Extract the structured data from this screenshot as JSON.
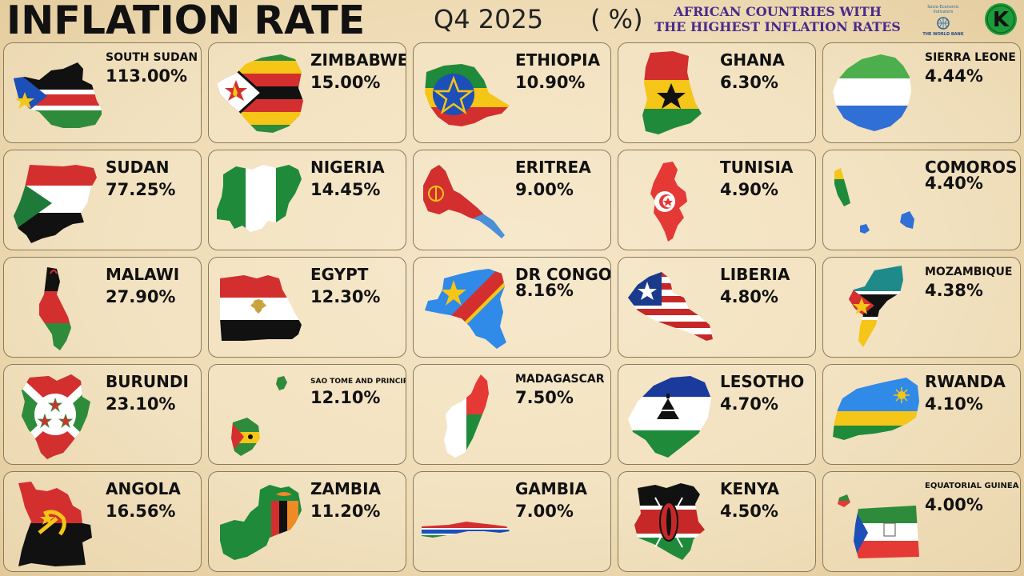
{
  "header": {
    "title": "INFLATION RATE",
    "period": "Q4  2025",
    "unit": "( %)",
    "subtitle_line1": "AFRICAN COUNTRIES WITH",
    "subtitle_line2": "THE HIGHEST INFLATION RATES",
    "source_line1": "Socio-Economic",
    "source_line2": "Indicators",
    "source_name": "THE WORLD BANK",
    "brand_letter": "K"
  },
  "countries": [
    {
      "name": "SOUTH SUDAN",
      "value": "113.00%",
      "icon": "south-sudan-flag-map"
    },
    {
      "name": "SUDAN",
      "value": "77.25%",
      "icon": "sudan-flag-map"
    },
    {
      "name": "MALAWI",
      "value": "27.90%",
      "icon": "malawi-flag-map"
    },
    {
      "name": "BURUNDI",
      "value": "23.10%",
      "icon": "burundi-flag-map"
    },
    {
      "name": "ANGOLA",
      "value": "16.56%",
      "icon": "angola-flag-map"
    },
    {
      "name": "ZIMBABWE",
      "value": "15.00%",
      "icon": "zimbabwe-flag-map"
    },
    {
      "name": "NIGERIA",
      "value": "14.45%",
      "icon": "nigeria-flag-map"
    },
    {
      "name": "EGYPT",
      "value": "12.30%",
      "icon": "egypt-flag-map"
    },
    {
      "name": "SAO TOME AND PRINCIPE",
      "value": "12.10%",
      "icon": "sao-tome-flag-map"
    },
    {
      "name": "ZAMBIA",
      "value": "11.20%",
      "icon": "zambia-flag-map"
    },
    {
      "name": "ETHIOPIA",
      "value": "10.90%",
      "icon": "ethiopia-flag-map"
    },
    {
      "name": "ERITREA",
      "value": "9.00%",
      "icon": "eritrea-flag-map"
    },
    {
      "name": "DR CONGO",
      "value": "8.16%",
      "icon": "dr-congo-flag-map"
    },
    {
      "name": "MADAGASCAR",
      "value": "7.50%",
      "icon": "madagascar-flag-map"
    },
    {
      "name": "GAMBIA",
      "value": "7.00%",
      "icon": "gambia-flag-map"
    },
    {
      "name": "GHANA",
      "value": "6.30%",
      "icon": "ghana-flag-map"
    },
    {
      "name": "TUNISIA",
      "value": "4.90%",
      "icon": "tunisia-flag-map"
    },
    {
      "name": "LIBERIA",
      "value": "4.80%",
      "icon": "liberia-flag-map"
    },
    {
      "name": "LESOTHO",
      "value": "4.70%",
      "icon": "lesotho-flag-map"
    },
    {
      "name": "KENYA",
      "value": "4.50%",
      "icon": "kenya-flag-map"
    },
    {
      "name": "SIERRA LEONE",
      "value": "4.44%",
      "icon": "sierra-leone-flag-map"
    },
    {
      "name": "COMOROS",
      "value": "4.40%",
      "icon": "comoros-flag-map"
    },
    {
      "name": "MOZAMBIQUE",
      "value": "4.38%",
      "icon": "mozambique-flag-map"
    },
    {
      "name": "RWANDA",
      "value": "4.10%",
      "icon": "rwanda-flag-map"
    },
    {
      "name": "EQUATORIAL GUINEA",
      "value": "4.00%",
      "icon": "equatorial-guinea-flag-map"
    }
  ]
}
